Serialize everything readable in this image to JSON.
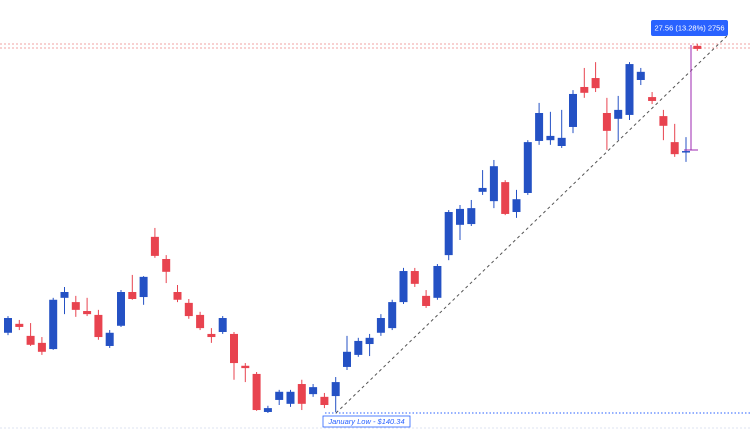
{
  "chart_data": {
    "type": "candlestick",
    "up_color": "#2451c4",
    "down_color": "#e8434f",
    "ylim": [
      135.96,
      246.7
    ],
    "series": [
      {
        "open": [
          161.0,
          163.3,
          160.2,
          158.4,
          156.8,
          170.0,
          168.9,
          166.6,
          165.6,
          157.6,
          162.8,
          171.5,
          170.2,
          185.7,
          180.0,
          171.5,
          168.7,
          165.6,
          160.7,
          161.2,
          160.7,
          152.5,
          150.4,
          140.6,
          143.7,
          142.7,
          147.8,
          145.2,
          144.5,
          144.7,
          152.2,
          155.3,
          158.1,
          161.0,
          162.2,
          168.9,
          176.9,
          170.5,
          170.0,
          181.0,
          188.8,
          189.0,
          197.3,
          194.9,
          199.8,
          192.1,
          197.0,
          210.4,
          210.6,
          209.1,
          214.0,
          224.3,
          226.6,
          217.6,
          216.1,
          217.1,
          226.1,
          221.7,
          216.8,
          210.1,
          207.6,
          234.9
        ],
        "high": [
          165.3,
          164.3,
          163.5,
          159.9,
          170.0,
          172.8,
          170.5,
          170.0,
          166.9,
          161.7,
          172.0,
          175.9,
          175.6,
          188.0,
          181.0,
          173.3,
          169.7,
          166.4,
          162.2,
          165.3,
          161.2,
          153.2,
          150.9,
          142.2,
          146.3,
          146.3,
          148.9,
          147.8,
          145.5,
          149.6,
          160.2,
          159.7,
          160.7,
          165.8,
          169.5,
          177.7,
          177.7,
          172.0,
          178.7,
          192.6,
          193.9,
          195.2,
          202.9,
          205.5,
          200.3,
          197.8,
          210.6,
          220.2,
          217.9,
          218.4,
          223.5,
          229.2,
          230.7,
          221.5,
          222.0,
          230.7,
          229.2,
          223.0,
          218.4,
          214.8,
          211.4,
          235.4
        ],
        "low": [
          160.4,
          161.7,
          157.6,
          155.3,
          156.6,
          165.8,
          165.1,
          165.3,
          159.2,
          157.1,
          162.5,
          169.5,
          168.2,
          180.3,
          173.8,
          168.9,
          164.6,
          161.7,
          158.4,
          160.7,
          148.9,
          148.3,
          140.9,
          140.34,
          142.4,
          141.9,
          141.1,
          144.5,
          141.6,
          140.6,
          151.4,
          154.8,
          155.0,
          160.2,
          161.7,
          168.4,
          172.8,
          167.4,
          169.5,
          179.7,
          184.9,
          188.5,
          196.5,
          193.1,
          191.3,
          190.6,
          196.5,
          209.4,
          209.4,
          208.6,
          212.4,
          221.5,
          223.0,
          208.1,
          210.6,
          215.8,
          224.8,
          219.9,
          210.6,
          206.3,
          205.0,
          233.6
        ],
        "close": [
          164.8,
          162.5,
          157.9,
          156.1,
          169.5,
          171.5,
          166.9,
          165.8,
          159.9,
          161.0,
          171.5,
          169.7,
          175.4,
          180.8,
          176.7,
          169.5,
          165.3,
          162.2,
          159.9,
          164.8,
          153.2,
          151.9,
          141.1,
          141.6,
          145.8,
          145.8,
          142.7,
          147.0,
          142.4,
          148.3,
          156.1,
          158.9,
          159.7,
          164.8,
          168.9,
          176.9,
          173.6,
          167.9,
          178.2,
          192.1,
          192.9,
          193.1,
          198.3,
          203.9,
          191.6,
          195.4,
          210.1,
          217.6,
          211.7,
          211.2,
          222.5,
          222.8,
          224.0,
          213.0,
          218.4,
          230.2,
          228.2,
          220.7,
          214.3,
          207.0,
          207.8,
          234.1
        ]
      }
    ],
    "annotations": {
      "measure": "27.56 (13.28%) 2756",
      "january_low": "January Low - $140.34"
    }
  }
}
